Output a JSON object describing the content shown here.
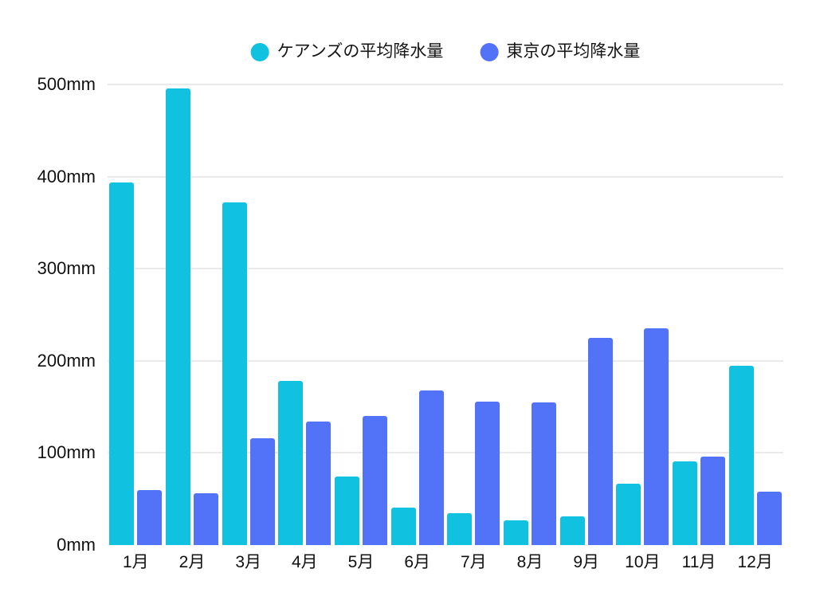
{
  "chart_data": {
    "type": "bar",
    "title": "",
    "xlabel": "",
    "ylabel": "",
    "unit": "mm",
    "categories": [
      "1月",
      "2月",
      "3月",
      "4月",
      "5月",
      "6月",
      "7月",
      "8月",
      "9月",
      "10月",
      "11月",
      "12月"
    ],
    "series": [
      {
        "name": "ケアンズの平均降水量",
        "color": "#10c1e0",
        "values": [
          394,
          496,
          372,
          178,
          74,
          41,
          35,
          27,
          31,
          67,
          91,
          195
        ]
      },
      {
        "name": "東京の平均降水量",
        "color": "#5272f7",
        "values": [
          60,
          56,
          116,
          134,
          140,
          168,
          156,
          155,
          225,
          235,
          96,
          58
        ]
      }
    ],
    "ylim": [
      0,
      500
    ],
    "yticks": [
      {
        "value": 0,
        "label": "0mm"
      },
      {
        "value": 100,
        "label": "100mm"
      },
      {
        "value": 200,
        "label": "200mm"
      },
      {
        "value": 300,
        "label": "300mm"
      },
      {
        "value": 400,
        "label": "400mm"
      },
      {
        "value": 500,
        "label": "500mm"
      }
    ],
    "grid": "horizontal",
    "legend_position": "top"
  },
  "colors": {
    "background": "#ffffff",
    "gridline": "#eaeaea",
    "text": "#151515"
  }
}
